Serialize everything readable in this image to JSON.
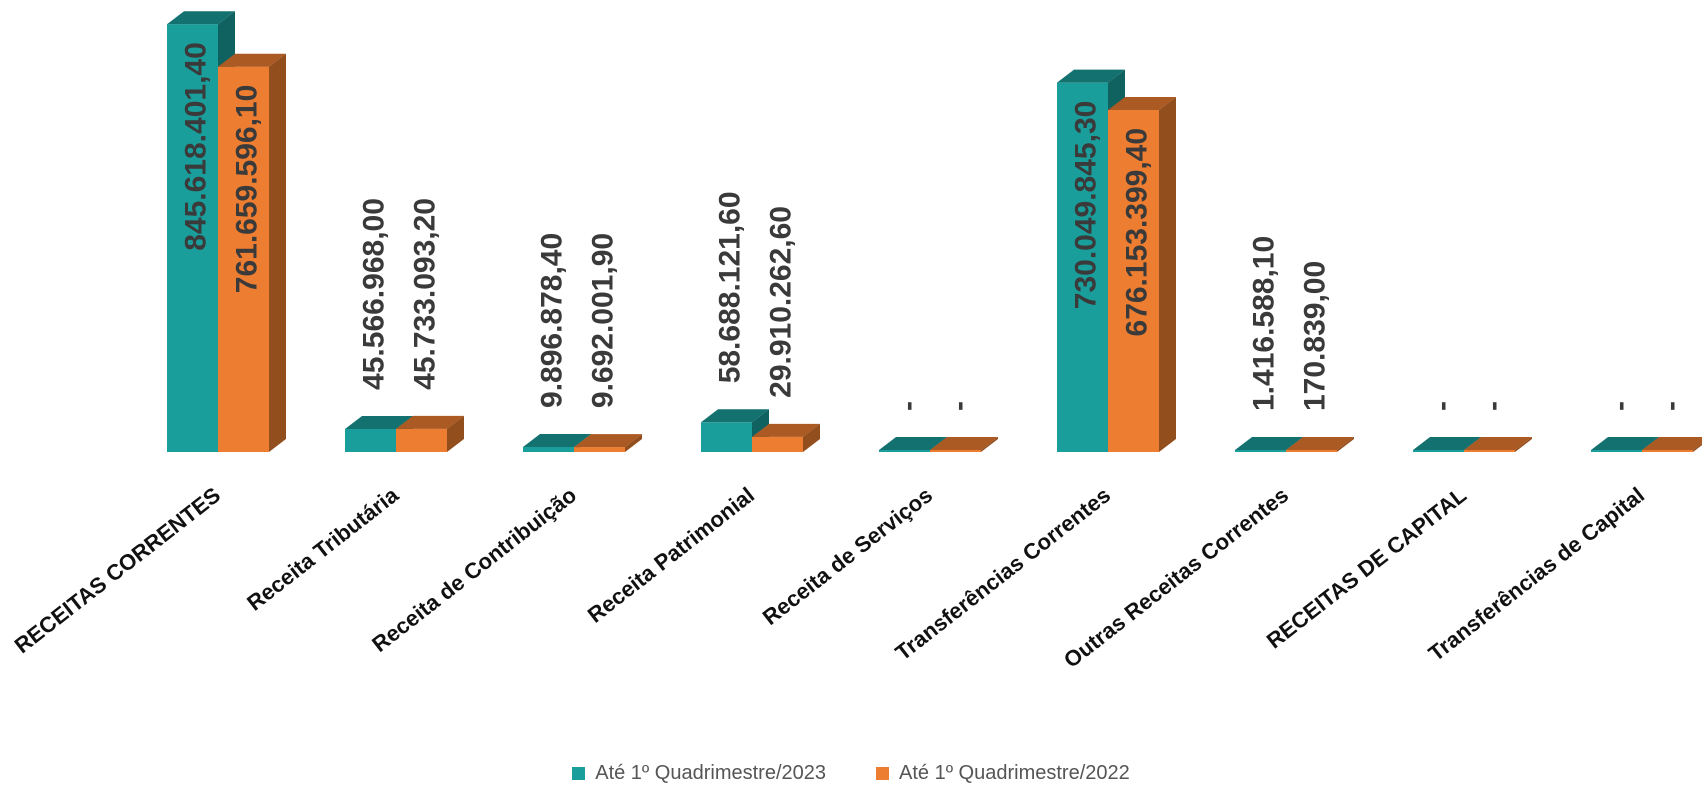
{
  "chart_data": {
    "type": "bar",
    "categories": [
      "RECEITAS CORRENTES",
      "Receita Tributária",
      "Receita de Contribuição",
      "Receita Patrimonial",
      "Receita de Serviços",
      "Transferências Correntes",
      "Outras Receitas Correntes",
      "RECEITAS DE CAPITAL",
      "Transferências de Capital"
    ],
    "series": [
      {
        "name": "Até 1º Quadrimestre/2023",
        "color": "#1a9e9b",
        "values": [
          845618401.4,
          45566968.0,
          9896878.4,
          58688121.6,
          0,
          730049845.3,
          1416588.1,
          0,
          0
        ],
        "labels": [
          "845.618.401,40",
          "45.566.968,00",
          "9.896.878,40",
          "58.688.121,60",
          "-",
          "730.049.845,30",
          "1.416.588,10",
          "-",
          "-"
        ]
      },
      {
        "name": "Até 1º Quadrimestre/2022",
        "color": "#ed7d31",
        "values": [
          761659596.1,
          45733093.2,
          9692001.9,
          29910262.6,
          0,
          676153399.4,
          170839.0,
          0,
          0
        ],
        "labels": [
          "761.659.596,10",
          "45.733.093,20",
          "9.692.001,90",
          "29.910.262,60",
          "-",
          "676.153.399,40",
          "170.839,00",
          "-",
          "-"
        ]
      }
    ],
    "ylim": [
      0,
      850000000
    ],
    "grid": false,
    "legend_position": "bottom",
    "style": "3d-column"
  }
}
